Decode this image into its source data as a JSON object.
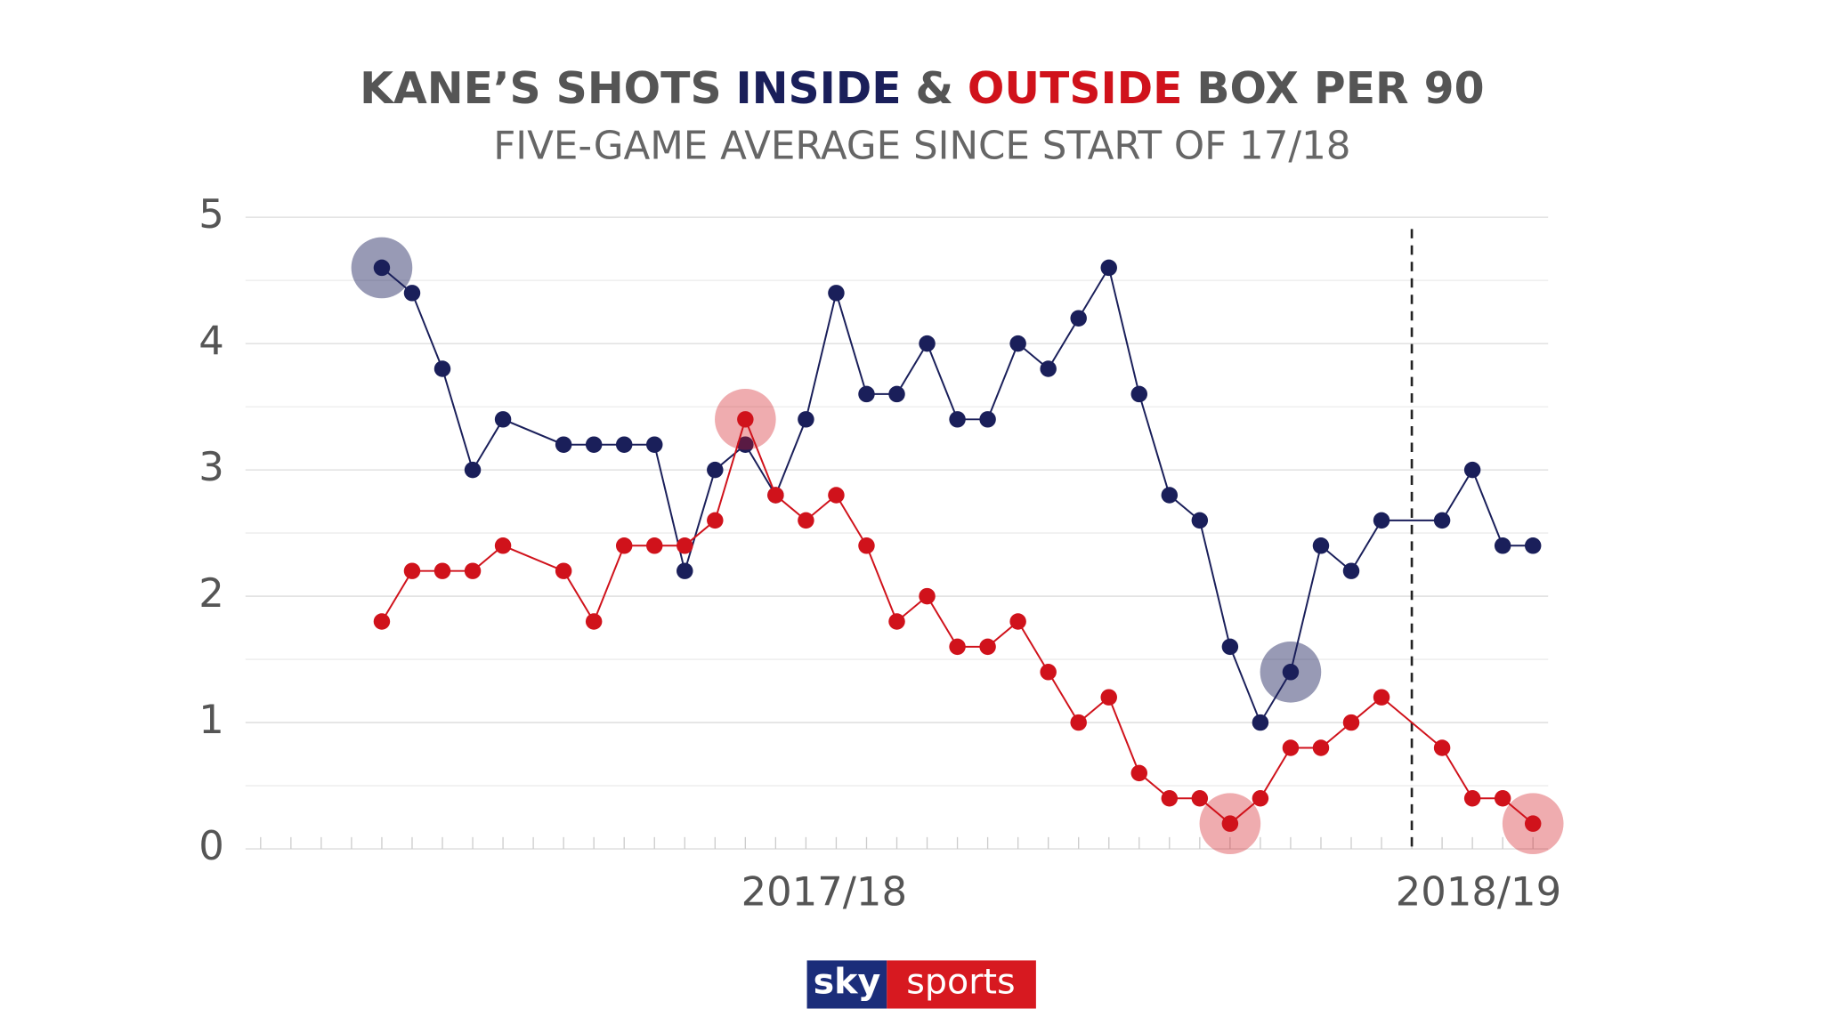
{
  "chart_data": {
    "type": "line",
    "title": [
      "KANE’S SHOTS",
      "&",
      "BOX PER 90"
    ],
    "subtitle": "FIVE-GAME AVERAGE SINCE START OF 17/18",
    "x": [
      0,
      1,
      2,
      3,
      4,
      6,
      7,
      8,
      9,
      10,
      11,
      12,
      13,
      14,
      15,
      16,
      17,
      18,
      19,
      20,
      21,
      22,
      23,
      24,
      25,
      26,
      27,
      28,
      29,
      30,
      31,
      32,
      33,
      35,
      36,
      37,
      38
    ],
    "series": [
      {
        "name": "INSIDE",
        "color": "#1a1f5a",
        "highlight": [
          0,
          29
        ],
        "values": [
          4.6,
          4.4,
          3.8,
          3.0,
          3.4,
          3.2,
          3.2,
          3.2,
          3.2,
          2.2,
          3.0,
          3.2,
          2.8,
          3.4,
          4.4,
          3.6,
          3.6,
          4.0,
          3.4,
          3.4,
          4.0,
          3.8,
          4.2,
          4.6,
          3.6,
          2.8,
          2.6,
          1.6,
          1.0,
          1.4,
          2.4,
          2.2,
          2.6,
          2.6,
          3.0,
          2.4,
          2.4
        ]
      },
      {
        "name": "OUTSIDE",
        "color": "#d0121b",
        "highlight": [
          11,
          27,
          36
        ],
        "values": [
          1.8,
          2.2,
          2.2,
          2.2,
          2.4,
          2.2,
          1.8,
          2.4,
          2.4,
          2.4,
          2.6,
          3.4,
          2.8,
          2.6,
          2.8,
          2.4,
          1.8,
          2.0,
          1.6,
          1.6,
          1.8,
          1.4,
          1.0,
          1.2,
          0.6,
          0.4,
          0.4,
          0.2,
          0.4,
          0.8,
          0.8,
          1.0,
          1.2,
          0.8,
          0.4,
          0.4,
          0.2
        ]
      }
    ],
    "xlim": [
      -4.5,
      38.5
    ],
    "xticks": [
      {
        "value": 14.6,
        "label": "2017/18"
      },
      {
        "value": 36.2,
        "label": "2018/19"
      }
    ],
    "xminorticks": [
      -4,
      -3,
      -2,
      -1,
      0,
      1,
      2,
      3,
      4,
      5,
      6,
      7,
      8,
      9,
      10,
      11,
      12,
      13,
      14,
      15,
      16,
      17,
      18,
      19,
      20,
      21,
      22,
      23,
      24,
      25,
      26,
      27,
      28,
      29,
      30,
      31,
      32,
      33,
      34,
      35,
      36,
      37,
      38
    ],
    "season_divider": 34,
    "ylim": [
      0,
      5
    ],
    "yticks": [
      0,
      1,
      2,
      3,
      4,
      5
    ],
    "yminorticks": [
      0.5,
      1.5,
      2.5,
      3.5,
      4.5
    ],
    "grid": true
  },
  "logo": [
    "sky",
    "sports"
  ]
}
